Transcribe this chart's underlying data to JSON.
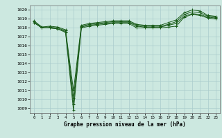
{
  "title": "Graphe pression niveau de la mer (hPa)",
  "xlabel_ticks": [
    "0",
    "1",
    "2",
    "3",
    "4",
    "5",
    "6",
    "7",
    "8",
    "9",
    "10",
    "11",
    "12",
    "13",
    "14",
    "15",
    "16",
    "17",
    "18",
    "19",
    "20",
    "21",
    "22",
    "23"
  ],
  "ylim": [
    1008.5,
    1020.5
  ],
  "yticks": [
    1009,
    1010,
    1011,
    1012,
    1013,
    1014,
    1015,
    1016,
    1017,
    1018,
    1019,
    1020
  ],
  "xlim": [
    -0.5,
    23.5
  ],
  "bg_color": "#cce8e0",
  "grid_color": "#aacccc",
  "line_color": "#1a5c1a",
  "marker": "+",
  "series": [
    [
      1018.6,
      1018.0,
      1018.0,
      1017.9,
      1017.5,
      1008.8,
      1018.0,
      1018.2,
      1018.3,
      1018.4,
      1018.5,
      1018.5,
      1018.5,
      1018.0,
      1018.0,
      1018.0,
      1018.0,
      1018.1,
      1018.2,
      1019.2,
      1019.5,
      1019.4,
      1019.1,
      1019.0
    ],
    [
      1018.6,
      1018.0,
      1018.0,
      1017.9,
      1017.6,
      1009.5,
      1018.1,
      1018.3,
      1018.4,
      1018.5,
      1018.6,
      1018.6,
      1018.6,
      1018.2,
      1018.1,
      1018.1,
      1018.1,
      1018.3,
      1018.5,
      1019.3,
      1019.6,
      1019.5,
      1019.2,
      1019.1
    ],
    [
      1018.7,
      1018.1,
      1018.1,
      1018.0,
      1017.7,
      1010.2,
      1018.2,
      1018.4,
      1018.5,
      1018.6,
      1018.7,
      1018.7,
      1018.7,
      1018.3,
      1018.2,
      1018.2,
      1018.2,
      1018.4,
      1018.7,
      1019.5,
      1019.8,
      1019.7,
      1019.3,
      1019.2
    ],
    [
      1018.8,
      1018.1,
      1018.2,
      1018.1,
      1017.8,
      1011.0,
      1018.3,
      1018.5,
      1018.6,
      1018.7,
      1018.8,
      1018.8,
      1018.8,
      1018.4,
      1018.3,
      1018.3,
      1018.3,
      1018.6,
      1018.9,
      1019.7,
      1020.0,
      1019.9,
      1019.4,
      1019.3
    ]
  ]
}
